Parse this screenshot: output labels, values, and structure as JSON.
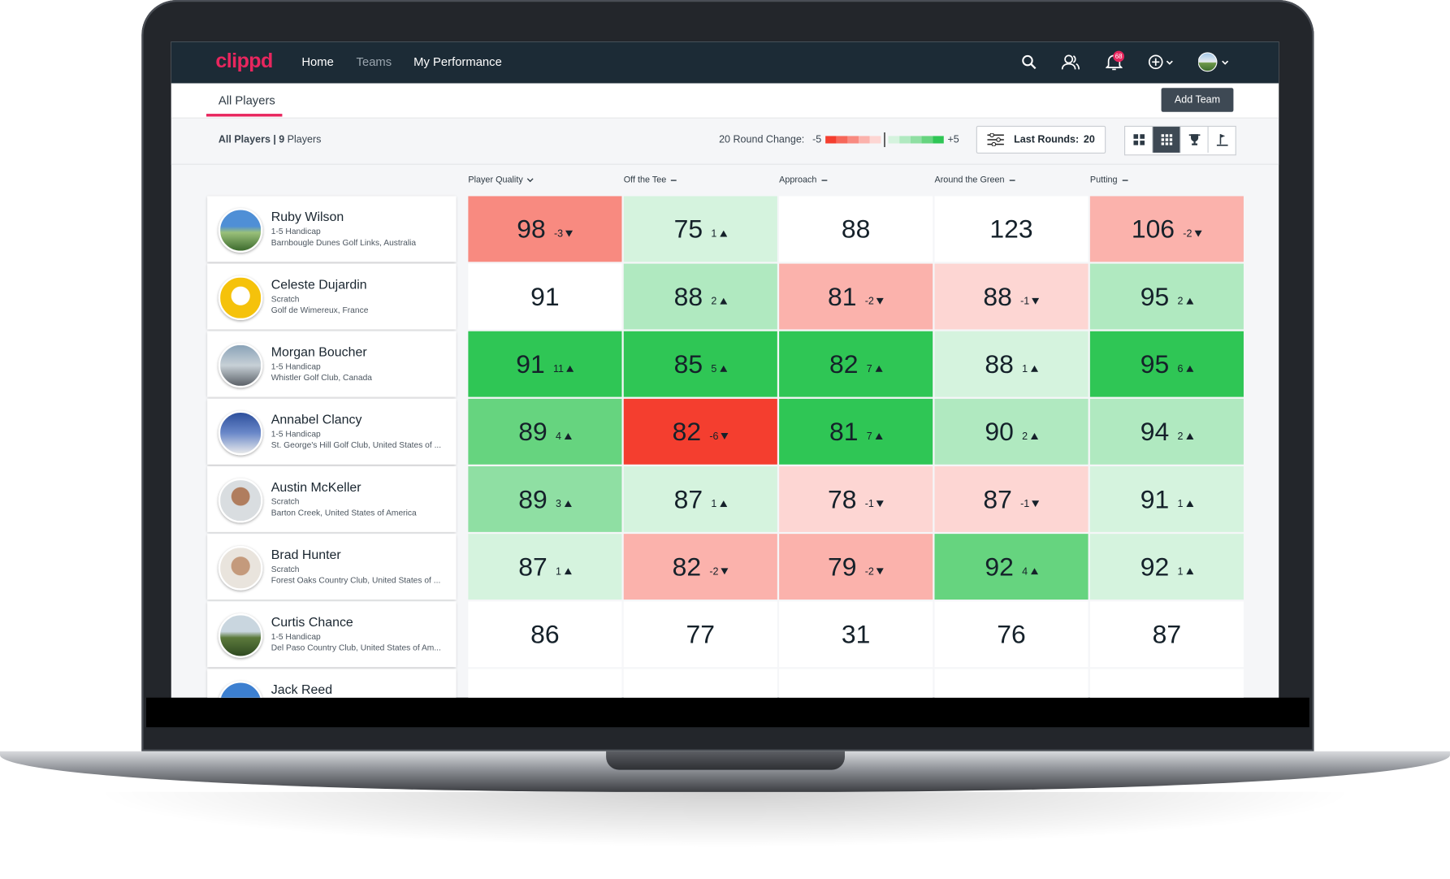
{
  "nav": {
    "logo": "clippd",
    "links": [
      "Home",
      "Teams",
      "My Performance"
    ],
    "notification_count": 68
  },
  "tabs": {
    "active": "All Players",
    "add_button": "Add Team"
  },
  "toolbar": {
    "title": "All Players",
    "separator": "|",
    "player_count": 9,
    "player_unit": "Players",
    "round_change_label": "20 Round Change:",
    "scale_min": "-5",
    "scale_max": "+5",
    "last_rounds_label": "Last Rounds:",
    "last_rounds_value": 20
  },
  "table": {
    "columns": [
      "Player Quality",
      "Off the Tee",
      "Approach",
      "Around the Green",
      "Putting"
    ],
    "rows": [
      {
        "name": "Ruby Wilson",
        "handicap": "1-5 Handicap",
        "club": "Barnbougle Dunes Golf Links, Australia",
        "cells": [
          {
            "value": 98,
            "change": -3
          },
          {
            "value": 75,
            "change": 1
          },
          {
            "value": 88,
            "change": null
          },
          {
            "value": 123,
            "change": null
          },
          {
            "value": 106,
            "change": -2
          }
        ]
      },
      {
        "name": "Celeste Dujardin",
        "handicap": "Scratch",
        "club": "Golf de Wimereux, France",
        "cells": [
          {
            "value": 91,
            "change": null
          },
          {
            "value": 88,
            "change": 2
          },
          {
            "value": 81,
            "change": -2
          },
          {
            "value": 88,
            "change": -1
          },
          {
            "value": 95,
            "change": 2
          }
        ]
      },
      {
        "name": "Morgan Boucher",
        "handicap": "1-5 Handicap",
        "club": "Whistler Golf Club, Canada",
        "cells": [
          {
            "value": 91,
            "change": 11
          },
          {
            "value": 85,
            "change": 5
          },
          {
            "value": 82,
            "change": 7
          },
          {
            "value": 88,
            "change": 1
          },
          {
            "value": 95,
            "change": 6
          }
        ]
      },
      {
        "name": "Annabel Clancy",
        "handicap": "1-5 Handicap",
        "club": "St. George's Hill Golf Club, United States of ...",
        "cells": [
          {
            "value": 89,
            "change": 4
          },
          {
            "value": 82,
            "change": -6
          },
          {
            "value": 81,
            "change": 7
          },
          {
            "value": 90,
            "change": 2
          },
          {
            "value": 94,
            "change": 2
          }
        ]
      },
      {
        "name": "Austin McKeller",
        "handicap": "Scratch",
        "club": "Barton Creek, United States of America",
        "cells": [
          {
            "value": 89,
            "change": 3
          },
          {
            "value": 87,
            "change": 1
          },
          {
            "value": 78,
            "change": -1
          },
          {
            "value": 87,
            "change": -1
          },
          {
            "value": 91,
            "change": 1
          }
        ]
      },
      {
        "name": "Brad Hunter",
        "handicap": "Scratch",
        "club": "Forest Oaks Country Club, United States of ...",
        "cells": [
          {
            "value": 87,
            "change": 1
          },
          {
            "value": 82,
            "change": -2
          },
          {
            "value": 79,
            "change": -2
          },
          {
            "value": 92,
            "change": 4
          },
          {
            "value": 92,
            "change": 1
          }
        ]
      },
      {
        "name": "Curtis Chance",
        "handicap": "1-5 Handicap",
        "club": "Del Paso Country Club, United States of Am...",
        "cells": [
          {
            "value": 86,
            "change": null
          },
          {
            "value": 77,
            "change": null
          },
          {
            "value": 31,
            "change": null
          },
          {
            "value": 76,
            "change": null
          },
          {
            "value": 87,
            "change": null
          }
        ]
      },
      {
        "name": "Jack Reed",
        "cells": []
      }
    ]
  }
}
